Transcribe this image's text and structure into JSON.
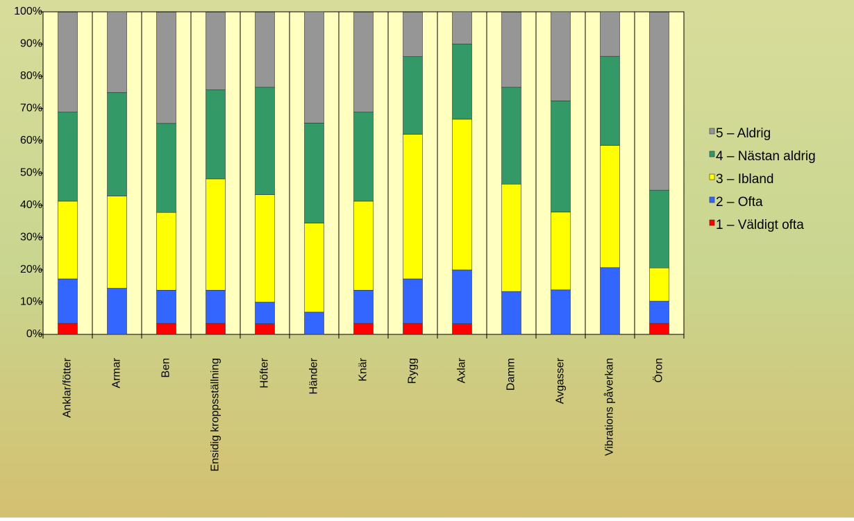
{
  "chart_data": {
    "type": "stacked-bar",
    "categories": [
      "Anklar/fötter",
      "Armar",
      "Ben",
      "Ensidig kroppsställning",
      "Höfter",
      "Händer",
      "Knär",
      "Rygg",
      "Axlar",
      "Damm",
      "Avgasser",
      "Vibrations påverkan",
      "Öron"
    ],
    "series": [
      {
        "name": "1 – Väldigt ofta",
        "color": "#ff0000",
        "values": [
          3.4,
          0,
          3.4,
          3.4,
          3.3,
          0,
          3.4,
          3.4,
          3.3,
          0,
          0,
          0,
          3.4
        ]
      },
      {
        "name": "2 – Ofta",
        "color": "#3366ff",
        "values": [
          13.8,
          14.3,
          10.3,
          10.3,
          6.7,
          6.9,
          10.3,
          13.8,
          16.7,
          13.3,
          13.8,
          20.7,
          6.9
        ]
      },
      {
        "name": "3 – Ibland",
        "color": "#ffff00",
        "values": [
          24.1,
          28.6,
          24.1,
          34.5,
          33.3,
          27.6,
          27.6,
          44.8,
          46.7,
          33.3,
          24.1,
          37.9,
          10.3
        ]
      },
      {
        "name": "4 – Nästan aldrig",
        "color": "#339966",
        "values": [
          27.6,
          32.1,
          27.6,
          27.6,
          33.3,
          31.0,
          27.6,
          24.1,
          23.3,
          30.0,
          34.5,
          27.6,
          24.1
        ]
      },
      {
        "name": "5 – Aldrig",
        "color": "#969696",
        "values": [
          31.0,
          25.0,
          34.5,
          24.1,
          23.3,
          34.5,
          31.0,
          13.8,
          10.0,
          23.3,
          27.6,
          13.8,
          55.2
        ]
      }
    ],
    "ylim": [
      0,
      100
    ],
    "yticks": [
      {
        "value": 0,
        "label": "0%"
      },
      {
        "value": 10,
        "label": "10%"
      },
      {
        "value": 20,
        "label": "20%"
      },
      {
        "value": 30,
        "label": "30%"
      },
      {
        "value": 40,
        "label": "40%"
      },
      {
        "value": 50,
        "label": "50%"
      },
      {
        "value": 60,
        "label": "60%"
      },
      {
        "value": 70,
        "label": "70%"
      },
      {
        "value": 80,
        "label": "80%"
      },
      {
        "value": 90,
        "label": "90%"
      },
      {
        "value": 100,
        "label": "100%"
      }
    ],
    "legend": "right"
  }
}
